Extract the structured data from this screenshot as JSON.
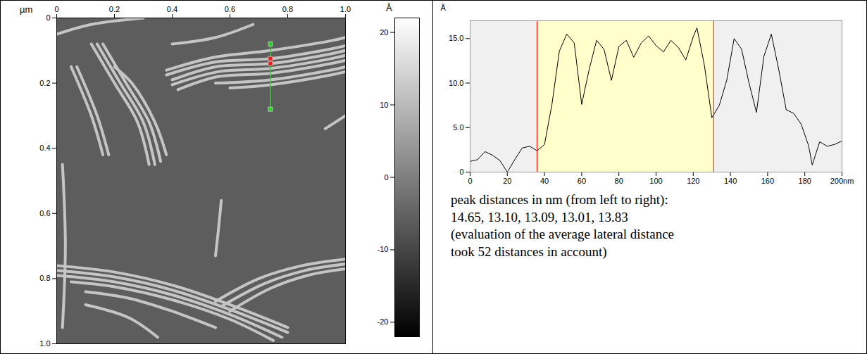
{
  "chart_data": [
    {
      "type": "image",
      "x_label": "µm",
      "xlim": [
        0,
        1
      ],
      "xticks": [
        0,
        0.2,
        0.4,
        0.6,
        0.8,
        {
          "value": 1,
          "label": "1.0"
        }
      ],
      "ylim": [
        0,
        1
      ],
      "yticks": [
        0,
        0.2,
        0.4,
        0.6,
        0.8,
        {
          "value": 1,
          "label": "1.0"
        }
      ],
      "background_height": -6,
      "fibril_height": 12,
      "fibrils": [
        [
          [
            0.38,
            0.16
          ],
          [
            0.55,
            0.12
          ],
          [
            0.74,
            0.1
          ],
          [
            0.95,
            0.07
          ],
          [
            1.0,
            0.06
          ]
        ],
        [
          [
            0.38,
            0.175
          ],
          [
            0.55,
            0.135
          ],
          [
            0.74,
            0.125
          ],
          [
            0.95,
            0.095
          ],
          [
            1.0,
            0.085
          ]
        ],
        [
          [
            0.4,
            0.19
          ],
          [
            0.55,
            0.15
          ],
          [
            0.74,
            0.14
          ],
          [
            0.95,
            0.11
          ],
          [
            1.0,
            0.1
          ]
        ],
        [
          [
            0.4,
            0.205
          ],
          [
            0.56,
            0.165
          ],
          [
            0.74,
            0.155
          ],
          [
            0.95,
            0.125
          ],
          [
            1.0,
            0.115
          ]
        ],
        [
          [
            0.42,
            0.22
          ],
          [
            0.56,
            0.18
          ],
          [
            0.74,
            0.17
          ],
          [
            0.95,
            0.14
          ],
          [
            1.0,
            0.13
          ]
        ],
        [
          [
            0.55,
            0.2
          ],
          [
            0.74,
            0.19
          ],
          [
            0.95,
            0.16
          ],
          [
            1.0,
            0.15
          ]
        ],
        [
          [
            0.6,
            0.215
          ],
          [
            0.74,
            0.205
          ],
          [
            0.95,
            0.175
          ],
          [
            1.0,
            0.165
          ]
        ],
        [
          [
            0.4,
            0.08
          ],
          [
            0.55,
            0.06
          ],
          [
            0.68,
            0.02
          ]
        ],
        [
          [
            0.12,
            0.08
          ],
          [
            0.2,
            0.2
          ],
          [
            0.28,
            0.32
          ],
          [
            0.32,
            0.45
          ]
        ],
        [
          [
            0.14,
            0.08
          ],
          [
            0.22,
            0.2
          ],
          [
            0.3,
            0.32
          ],
          [
            0.34,
            0.45
          ]
        ],
        [
          [
            0.16,
            0.08
          ],
          [
            0.24,
            0.2
          ],
          [
            0.32,
            0.32
          ],
          [
            0.36,
            0.44
          ]
        ],
        [
          [
            0.2,
            0.15
          ],
          [
            0.26,
            0.2
          ],
          [
            0.34,
            0.32
          ],
          [
            0.38,
            0.42
          ]
        ],
        [
          [
            0.05,
            0.15
          ],
          [
            0.12,
            0.3
          ],
          [
            0.16,
            0.42
          ]
        ],
        [
          [
            0.07,
            0.15
          ],
          [
            0.14,
            0.3
          ],
          [
            0.18,
            0.42
          ]
        ],
        [
          [
            0.0,
            0.05
          ],
          [
            0.12,
            0.02
          ],
          [
            0.3,
            0.0
          ]
        ],
        [
          [
            0.02,
            0.45
          ],
          [
            0.03,
            0.7
          ],
          [
            0.02,
            0.95
          ]
        ],
        [
          [
            0.57,
            0.56
          ],
          [
            0.56,
            0.65
          ],
          [
            0.55,
            0.73
          ]
        ],
        [
          [
            0.0,
            0.76
          ],
          [
            0.2,
            0.78
          ],
          [
            0.4,
            0.82
          ],
          [
            0.6,
            0.88
          ],
          [
            0.8,
            0.95
          ]
        ],
        [
          [
            0.0,
            0.775
          ],
          [
            0.2,
            0.795
          ],
          [
            0.4,
            0.835
          ],
          [
            0.6,
            0.895
          ],
          [
            0.8,
            0.965
          ]
        ],
        [
          [
            0.0,
            0.79
          ],
          [
            0.2,
            0.81
          ],
          [
            0.4,
            0.85
          ],
          [
            0.6,
            0.91
          ],
          [
            0.78,
            0.98
          ]
        ],
        [
          [
            0.05,
            0.81
          ],
          [
            0.2,
            0.825
          ],
          [
            0.4,
            0.865
          ],
          [
            0.6,
            0.925
          ],
          [
            0.75,
            0.99
          ]
        ],
        [
          [
            0.1,
            0.84
          ],
          [
            0.25,
            0.86
          ],
          [
            0.4,
            0.9
          ],
          [
            0.55,
            0.95
          ]
        ],
        [
          [
            0.1,
            0.88
          ],
          [
            0.25,
            0.92
          ],
          [
            0.35,
            0.98
          ]
        ],
        [
          [
            0.55,
            0.87
          ],
          [
            0.7,
            0.8
          ],
          [
            0.85,
            0.76
          ],
          [
            1.0,
            0.74
          ]
        ],
        [
          [
            0.57,
            0.885
          ],
          [
            0.72,
            0.815
          ],
          [
            0.86,
            0.775
          ],
          [
            1.0,
            0.755
          ]
        ],
        [
          [
            0.6,
            0.9
          ],
          [
            0.74,
            0.83
          ],
          [
            0.87,
            0.79
          ],
          [
            1.0,
            0.77
          ]
        ],
        [
          [
            0.93,
            0.34
          ],
          [
            1.0,
            0.3
          ]
        ]
      ],
      "profile_line": {
        "from": [
          0.74,
          0.08
        ],
        "to": [
          0.74,
          0.28
        ],
        "color": "#33cc33",
        "cursors": [
          0.125,
          0.14
        ],
        "cursor_color": "#dd2222"
      },
      "colorbar": {
        "label": "Å",
        "range": [
          -22,
          22
        ],
        "ticks": [
          20,
          10,
          0,
          -10,
          -20
        ],
        "colors": [
          "#000000",
          "#ffffff"
        ]
      }
    },
    {
      "type": "line",
      "y_label": "Å",
      "x": [
        0,
        4,
        8,
        12,
        16,
        20,
        24,
        28,
        32,
        36,
        40,
        44,
        48,
        52,
        56,
        60,
        64,
        68,
        72,
        76,
        80,
        84,
        88,
        92,
        96,
        100,
        104,
        108,
        112,
        116,
        120,
        122,
        126,
        130,
        134,
        138,
        142,
        146,
        150,
        154,
        158,
        162,
        166,
        170,
        174,
        178,
        182,
        184,
        188,
        192,
        196,
        200
      ],
      "values": [
        1.2,
        1.4,
        2.3,
        1.9,
        1.3,
        0,
        1.4,
        2.7,
        2.9,
        2.4,
        3.1,
        7.6,
        13.6,
        15.5,
        14.5,
        7.6,
        11.5,
        14.8,
        13.8,
        10.3,
        14.1,
        14.8,
        12.9,
        14.5,
        15.3,
        14.2,
        13.5,
        14.8,
        14.0,
        12.6,
        15.2,
        16.2,
        12.0,
        6.1,
        7.5,
        10.3,
        15.0,
        13.8,
        10.0,
        6.7,
        13.0,
        15.5,
        11.5,
        7.0,
        6.6,
        5.4,
        3.0,
        0.8,
        3.4,
        2.9,
        3.1,
        3.5
      ],
      "color": "#000000",
      "xlim": [
        0,
        200
      ],
      "xticks": [
        0,
        20,
        40,
        60,
        80,
        100,
        120,
        140,
        160,
        180,
        {
          "value": 200,
          "label": "200nm"
        }
      ],
      "ylim": [
        0,
        17
      ],
      "yticks": [
        0,
        {
          "value": 5,
          "label": "5.0"
        },
        {
          "value": 10,
          "label": "10.0"
        },
        {
          "value": 15,
          "label": "15.0"
        }
      ],
      "highlight": [
        36,
        131
      ],
      "highlight_color": "#ffffcc",
      "marker_color": "#ff0000",
      "background": "#f0f0f0",
      "annotations": [
        "peak distances in nm (from left to right):",
        "14.65, 13.10, 13.09, 13.01, 13.83",
        "(evaluation of the average lateral distance",
        "took 52 distances in account)"
      ]
    }
  ]
}
